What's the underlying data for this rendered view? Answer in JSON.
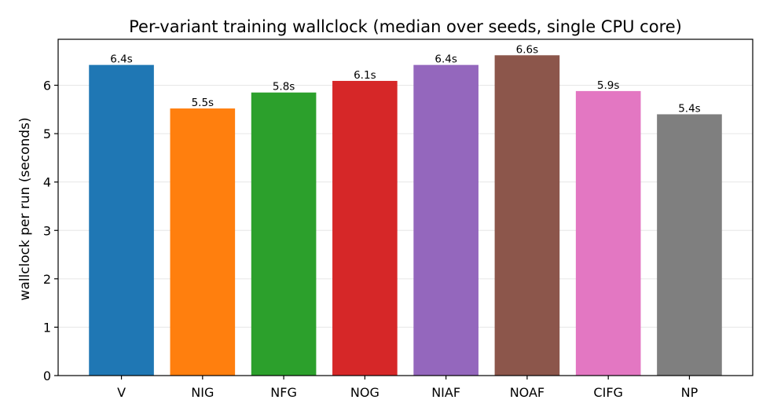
{
  "chart_data": {
    "type": "bar",
    "title": "Per-variant training wallclock (median over seeds, single CPU core)",
    "xlabel": "",
    "ylabel": "wallclock per run (seconds)",
    "categories": [
      "V",
      "NIG",
      "NFG",
      "NOG",
      "NIAF",
      "NOAF",
      "CIFG",
      "NP"
    ],
    "values": [
      6.42,
      5.52,
      5.85,
      6.09,
      6.42,
      6.62,
      5.88,
      5.4
    ],
    "data_labels": [
      "6.4s",
      "5.5s",
      "5.8s",
      "6.1s",
      "6.4s",
      "6.6s",
      "5.9s",
      "5.4s"
    ],
    "colors": [
      "#1f77b4",
      "#ff7f0e",
      "#2ca02c",
      "#d62728",
      "#9467bd",
      "#8c564b",
      "#e377c2",
      "#7f7f7f"
    ],
    "yticks": [
      0,
      1,
      2,
      3,
      4,
      5,
      6
    ],
    "ylim": [
      0,
      6.95
    ],
    "grid": "y",
    "legend": "none"
  }
}
